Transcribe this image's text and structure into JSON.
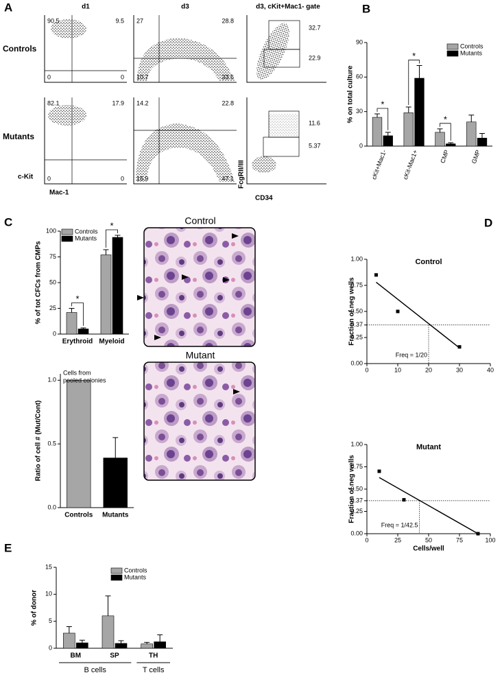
{
  "panels": {
    "letters": [
      "A",
      "B",
      "C",
      "D",
      "E"
    ],
    "A": {
      "columns": [
        "d1",
        "d3",
        "d3, cKit+Mac1- gate"
      ],
      "rows": [
        "Controls",
        "Mutants"
      ],
      "y_axis": "c-Kit",
      "x_axis": "Mac-1",
      "gate_y_axis": "FcgRII/III",
      "gate_x_axis": "CD34",
      "quadrants": [
        [
          [
            "90.5",
            "9.5",
            "0",
            "0"
          ],
          [
            "27",
            "28.8",
            "10.7",
            "33.6"
          ],
          [
            "32.7",
            "22.9"
          ]
        ],
        [
          [
            "82.1",
            "17.9",
            "0",
            "0"
          ],
          [
            "14.2",
            "22.8",
            "15.9",
            "47.1"
          ],
          [
            "11.6",
            "5.37"
          ]
        ]
      ]
    },
    "micrographs": [
      "Control",
      "Mutant"
    ]
  },
  "chart_data": [
    {
      "type": "bar",
      "ylabel": "% on total culture",
      "categories": [
        "cKit+Mac1-",
        "cKit-Mac1+",
        "CMP",
        "GMP"
      ],
      "series": [
        {
          "name": "Controls",
          "color": "#a6a6a6",
          "values": [
            25,
            29,
            12,
            21
          ],
          "errors": [
            3,
            5,
            3,
            6
          ]
        },
        {
          "name": "Mutants",
          "color": "#000000",
          "values": [
            9,
            59,
            2,
            7
          ],
          "errors": [
            3,
            11,
            1,
            4
          ]
        }
      ],
      "significance": [
        "*",
        "*",
        "*",
        null
      ],
      "ylim": [
        0,
        90
      ],
      "yticks": [
        0,
        30,
        60,
        90
      ],
      "legend": "top-right"
    },
    {
      "type": "bar",
      "ylabel": "% of tot CFCs from CMPs",
      "categories": [
        "Erythroid",
        "Myeloid"
      ],
      "series": [
        {
          "name": "Controls",
          "color": "#a6a6a6",
          "values": [
            21,
            77
          ],
          "errors": [
            4,
            5
          ]
        },
        {
          "name": "Mutants",
          "color": "#000000",
          "values": [
            5,
            94
          ],
          "errors": [
            1,
            2
          ]
        }
      ],
      "significance": [
        "*",
        "*"
      ],
      "ylim": [
        0,
        100
      ],
      "yticks": [
        0,
        25,
        50,
        75,
        100
      ],
      "legend": "top-left"
    },
    {
      "type": "singlebar",
      "ylabel": "Ratio of cell # (Mut/Cont)",
      "annotation": [
        "Cells from",
        "pooled colonies"
      ],
      "categories": [
        "Controls",
        "Mutants"
      ],
      "values": [
        1.0,
        0.39
      ],
      "errors": [
        null,
        0.16
      ],
      "colors": [
        "#a6a6a6",
        "#000000"
      ],
      "ylim": [
        0,
        1.05
      ],
      "yticks": [
        {
          "value": 0,
          "label": "0.0"
        },
        0.5,
        {
          "value": 1,
          "label": "1.0"
        }
      ]
    },
    {
      "type": "scatter",
      "title": "Control",
      "ylabel": "Fraction of neg wells",
      "annotation": "Freq = 1/20",
      "x": [
        3,
        10,
        30
      ],
      "y": [
        0.85,
        0.5,
        0.16
      ],
      "color": "#000000",
      "fit_line": {
        "x": [
          3,
          30
        ],
        "y": [
          0.78,
          0.15
        ]
      },
      "ref_x": 20,
      "ref_y": 0.37,
      "xlim": [
        0,
        40
      ],
      "xticks": [
        0,
        10,
        20,
        30,
        40
      ],
      "ylim": [
        0,
        1
      ],
      "yticks": [
        {
          "value": 0,
          "label": "0.00"
        },
        0.25,
        0.37,
        {
          "value": 0.5,
          "label": "0.50"
        },
        0.75,
        {
          "value": 1,
          "label": "1.00"
        }
      ]
    },
    {
      "type": "scatter",
      "title": "Mutant",
      "ylabel": "Fraction of neg wells",
      "xlabel": "Cells/well",
      "annotation": "Freq = 1/42.5",
      "x": [
        10,
        30,
        90
      ],
      "y": [
        0.7,
        0.38,
        0.0
      ],
      "color": "#000000",
      "fit_line": {
        "x": [
          10,
          90
        ],
        "y": [
          0.63,
          0.0
        ]
      },
      "ref_x": 42.5,
      "ref_y": 0.37,
      "xlim": [
        0,
        100
      ],
      "xticks": [
        0,
        25,
        50,
        75,
        100
      ],
      "ylim": [
        0,
        1
      ],
      "yticks": [
        {
          "value": 0,
          "label": "0.00"
        },
        0.25,
        0.37,
        {
          "value": 0.5,
          "label": "0.50"
        },
        0.75,
        {
          "value": 1,
          "label": "1.00"
        }
      ]
    },
    {
      "type": "bar",
      "ylabel": "% of donor",
      "categories": [
        "BM",
        "SP",
        "TH"
      ],
      "groups": [
        {
          "name": "B cells",
          "size": 2
        },
        {
          "name": "T cells",
          "size": 1
        }
      ],
      "series": [
        {
          "name": "Controls",
          "color": "#a6a6a6",
          "values": [
            2.8,
            6.0,
            0.8
          ],
          "errors": [
            1.2,
            3.7,
            0.3
          ]
        },
        {
          "name": "Mutants",
          "color": "#000000",
          "values": [
            1.0,
            0.9,
            1.2
          ],
          "errors": [
            0.5,
            0.5,
            1.3
          ]
        }
      ],
      "ylim": [
        0,
        15
      ],
      "yticks": [
        0,
        5,
        10,
        15
      ],
      "legend": "top-right"
    }
  ]
}
